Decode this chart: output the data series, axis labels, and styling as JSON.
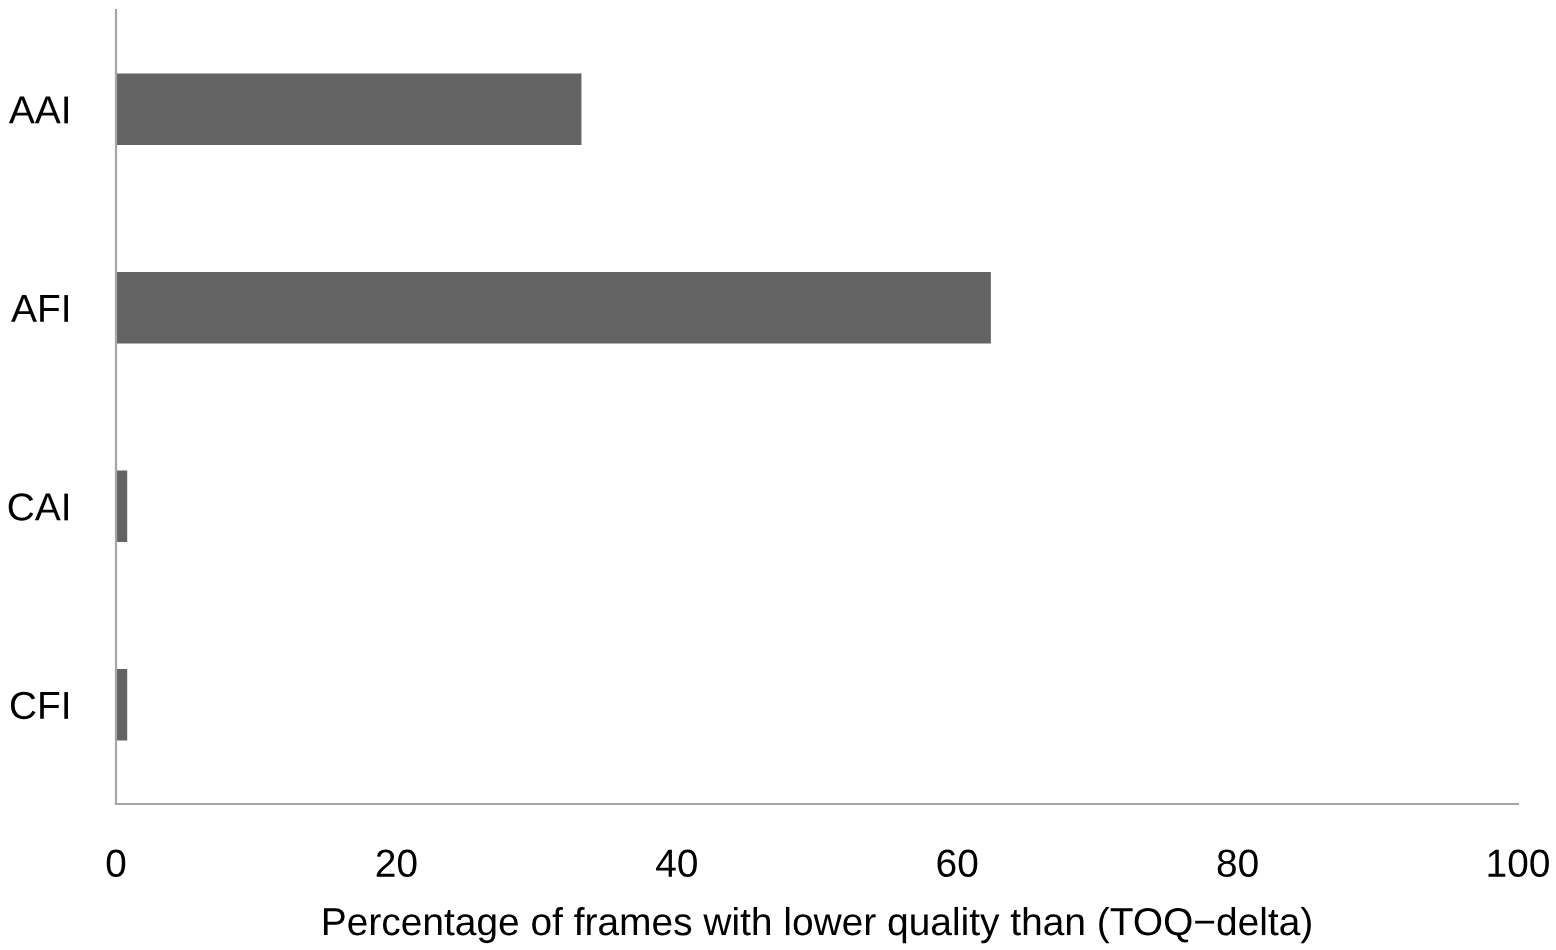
{
  "chart_data": {
    "type": "bar",
    "orientation": "horizontal",
    "xlabel": "Percentage of frames with lower quality than (TOQ−delta)",
    "categories": [
      "AAI",
      "AFI",
      "CAI",
      "CFI"
    ],
    "values": [
      33.2,
      62.4,
      0.8,
      0.8
    ],
    "color": "#636363",
    "xlim": [
      0,
      100
    ],
    "xticks": [
      0,
      20,
      40,
      60,
      80,
      100
    ],
    "grid": false,
    "legend": false
  }
}
